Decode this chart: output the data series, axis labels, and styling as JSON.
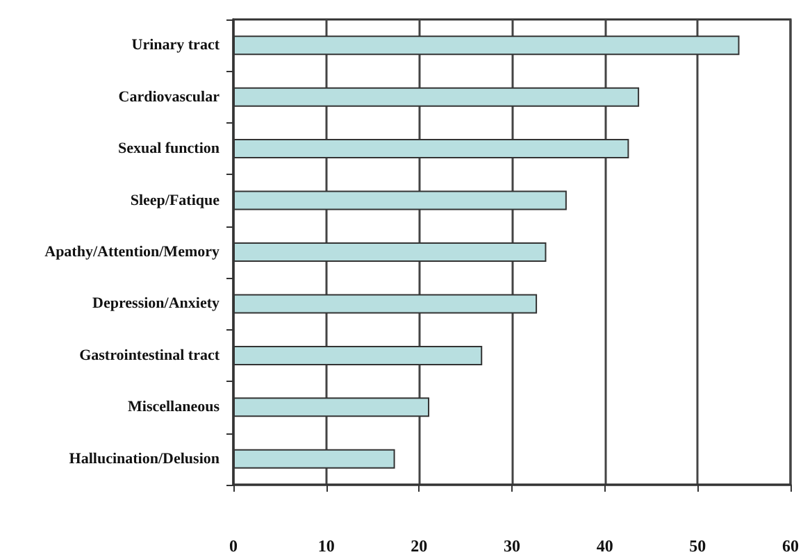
{
  "chart_data": {
    "type": "bar",
    "orientation": "horizontal",
    "categories": [
      "Urinary tract",
      "Cardiovascular",
      "Sexual function",
      "Sleep/Fatique",
      "Apathy/Attention/Memory",
      "Depression/Anxiety",
      "Gastrointestinal tract",
      "Miscellaneous",
      "Hallucination/Delusion"
    ],
    "values": [
      54.5,
      43.7,
      42.6,
      35.9,
      33.7,
      32.7,
      26.8,
      21.1,
      17.4
    ],
    "color": "#b8dfe0",
    "xlim": [
      0,
      60
    ],
    "xticks": [
      0,
      10,
      20,
      30,
      40,
      50,
      60
    ],
    "grid": "x"
  }
}
